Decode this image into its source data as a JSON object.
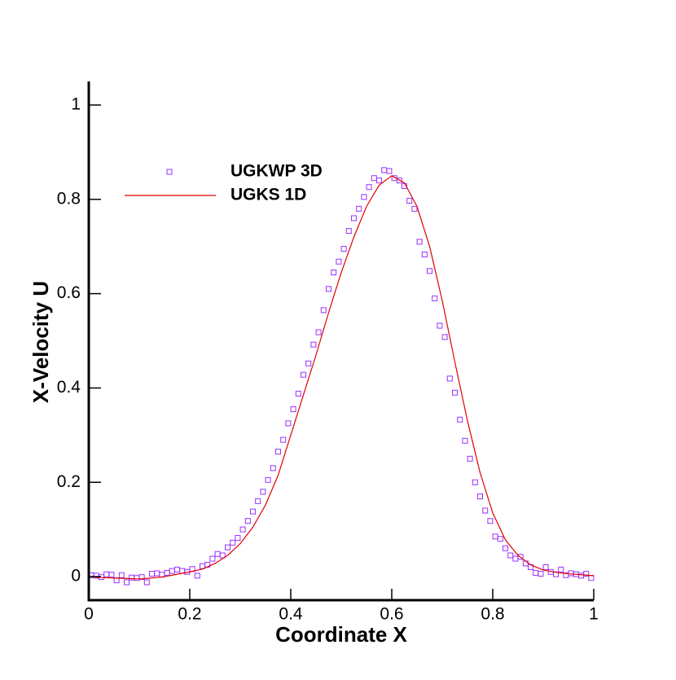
{
  "chart_data": {
    "type": "line",
    "xlabel": "Coordinate X",
    "ylabel": "X-Velocity U",
    "xlim": [
      0,
      1
    ],
    "ylim": [
      -0.05,
      1.05
    ],
    "xticks": [
      0,
      0.2,
      0.4,
      0.6,
      0.8,
      1
    ],
    "yticks": [
      0,
      0.2,
      0.4,
      0.6,
      0.8,
      1
    ],
    "legend": "upper left",
    "series": [
      {
        "name": "UGKWP 3D",
        "color": "#9b30ff",
        "mode": "markers",
        "x": [
          0.005,
          0.015,
          0.025,
          0.035,
          0.045,
          0.055,
          0.065,
          0.075,
          0.085,
          0.095,
          0.105,
          0.115,
          0.125,
          0.135,
          0.145,
          0.155,
          0.165,
          0.175,
          0.185,
          0.195,
          0.205,
          0.215,
          0.225,
          0.235,
          0.245,
          0.255,
          0.265,
          0.275,
          0.285,
          0.295,
          0.305,
          0.315,
          0.325,
          0.335,
          0.345,
          0.355,
          0.365,
          0.375,
          0.385,
          0.395,
          0.405,
          0.415,
          0.425,
          0.435,
          0.445,
          0.455,
          0.465,
          0.475,
          0.485,
          0.495,
          0.505,
          0.515,
          0.525,
          0.535,
          0.545,
          0.555,
          0.565,
          0.575,
          0.585,
          0.595,
          0.605,
          0.615,
          0.625,
          0.635,
          0.645,
          0.655,
          0.665,
          0.675,
          0.685,
          0.695,
          0.705,
          0.715,
          0.725,
          0.735,
          0.745,
          0.755,
          0.765,
          0.775,
          0.785,
          0.795,
          0.805,
          0.815,
          0.825,
          0.835,
          0.845,
          0.855,
          0.865,
          0.875,
          0.885,
          0.895,
          0.905,
          0.915,
          0.925,
          0.935,
          0.945,
          0.955,
          0.965,
          0.975,
          0.985,
          0.995
        ],
        "values": [
          0.003,
          0.002,
          -0.001,
          0.005,
          0.004,
          -0.008,
          0.003,
          -0.012,
          -0.002,
          -0.003,
          -0.001,
          -0.012,
          0.006,
          0.007,
          0.004,
          0.008,
          0.012,
          0.015,
          0.012,
          0.01,
          0.016,
          0.002,
          0.022,
          0.025,
          0.038,
          0.048,
          0.045,
          0.062,
          0.072,
          0.082,
          0.1,
          0.118,
          0.138,
          0.16,
          0.18,
          0.205,
          0.23,
          0.265,
          0.29,
          0.325,
          0.355,
          0.388,
          0.428,
          0.452,
          0.492,
          0.518,
          0.565,
          0.61,
          0.645,
          0.668,
          0.695,
          0.733,
          0.76,
          0.78,
          0.805,
          0.826,
          0.845,
          0.84,
          0.862,
          0.86,
          0.845,
          0.84,
          0.828,
          0.797,
          0.78,
          0.71,
          0.683,
          0.648,
          0.59,
          0.532,
          0.508,
          0.42,
          0.39,
          0.333,
          0.288,
          0.25,
          0.2,
          0.17,
          0.14,
          0.118,
          0.085,
          0.08,
          0.06,
          0.045,
          0.038,
          0.042,
          0.028,
          0.02,
          0.008,
          0.006,
          0.02,
          0.01,
          0.005,
          0.015,
          0.003,
          0.007,
          0.005,
          0.002,
          0.006,
          -0.003
        ]
      },
      {
        "name": "UGKS 1D",
        "color": "#e00000",
        "mode": "line",
        "x": [
          0,
          0.025,
          0.05,
          0.075,
          0.1,
          0.125,
          0.15,
          0.175,
          0.2,
          0.225,
          0.25,
          0.275,
          0.3,
          0.325,
          0.35,
          0.375,
          0.4,
          0.425,
          0.45,
          0.475,
          0.5,
          0.525,
          0.55,
          0.575,
          0.6,
          0.625,
          0.65,
          0.675,
          0.7,
          0.725,
          0.75,
          0.775,
          0.8,
          0.825,
          0.85,
          0.875,
          0.9,
          0.925,
          0.95,
          0.975,
          1
        ],
        "values": [
          0.0,
          -0.002,
          -0.003,
          -0.004,
          -0.005,
          -0.003,
          0.0,
          0.005,
          0.01,
          0.016,
          0.028,
          0.045,
          0.07,
          0.105,
          0.152,
          0.215,
          0.3,
          0.385,
          0.47,
          0.56,
          0.645,
          0.72,
          0.785,
          0.83,
          0.85,
          0.835,
          0.785,
          0.7,
          0.585,
          0.455,
          0.33,
          0.22,
          0.135,
          0.078,
          0.045,
          0.025,
          0.014,
          0.009,
          0.006,
          0.004,
          0.002
        ]
      }
    ]
  }
}
